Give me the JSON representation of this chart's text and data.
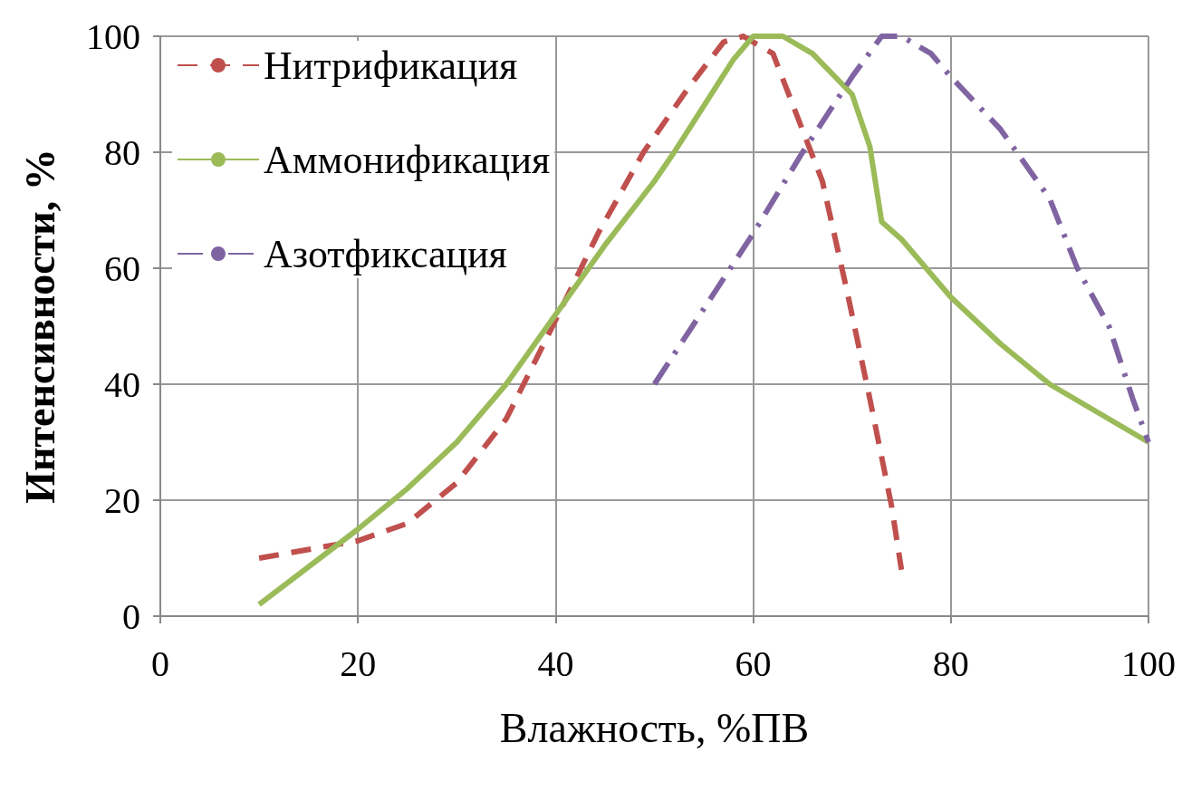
{
  "chart_data": {
    "type": "line",
    "xlabel": "Влажность, %ПВ",
    "ylabel": "Интенсивности, %",
    "xlim": [
      0,
      100
    ],
    "xticks": [
      0,
      20,
      40,
      60,
      80,
      100
    ],
    "ylim": [
      0,
      100
    ],
    "yticks": [
      0,
      20,
      40,
      60,
      80,
      100
    ],
    "grid": true,
    "legend": "top left",
    "marker": "none",
    "series": [
      {
        "name": "Нитрификация",
        "color": "#c0504d",
        "line_style": "dashed",
        "x": [
          10,
          20,
          25,
          30,
          35,
          39.7,
          44.3,
          48.9,
          53.4,
          57,
          59,
          62,
          67,
          69.5,
          71.8,
          74,
          75
        ],
        "values": [
          10,
          13,
          16,
          23,
          34,
          50,
          66,
          80,
          91,
          99,
          100,
          97,
          75,
          56,
          37.5,
          19,
          8
        ]
      },
      {
        "name": "Аммонификация",
        "color": "#9bbb59",
        "line_style": "solid",
        "x": [
          10,
          20,
          25,
          30,
          35,
          40,
          45,
          50,
          52,
          55,
          58,
          60,
          63,
          66,
          70,
          71.8,
          73,
          75,
          80,
          85,
          90,
          95,
          100
        ],
        "values": [
          2,
          15,
          22,
          30,
          40,
          52,
          64,
          75,
          80,
          88,
          96,
          100,
          100,
          97,
          90,
          81,
          68,
          65,
          55,
          47,
          40,
          35,
          30
        ]
      },
      {
        "name": "Азотфиксация",
        "color": "#8064a2",
        "line_style": "dashdot",
        "x": [
          50,
          55,
          60,
          65,
          70,
          73,
          75,
          78,
          80,
          85,
          90,
          92.8,
          96,
          98.4,
          100
        ],
        "values": [
          40,
          53,
          66,
          80,
          93,
          100,
          100,
          97,
          93,
          84,
          72,
          60,
          50,
          37.5,
          30
        ]
      }
    ]
  }
}
